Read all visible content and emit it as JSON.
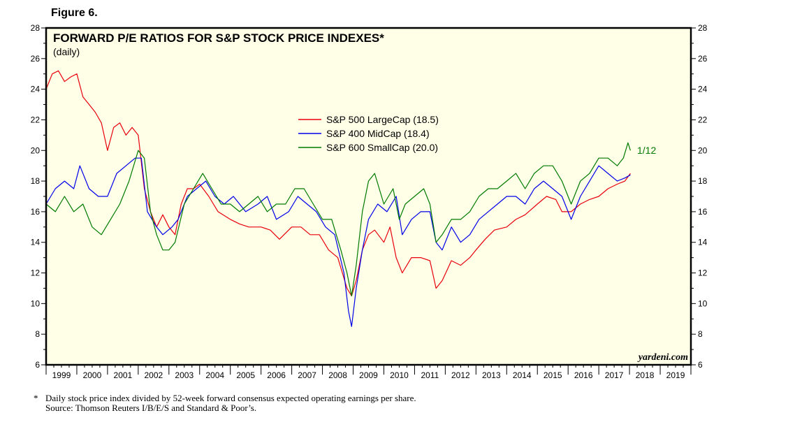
{
  "figure_label": "Figure 6.",
  "footnote": {
    "marker": "*",
    "line1": "Daily stock price index divided by 52-week forward consensus expected operating earnings per share.",
    "line2": "Source: Thomson Reuters I/B/E/S and Standard & Poor’s."
  },
  "chart_data": {
    "type": "line",
    "title": "FORWARD P/E RATIOS FOR S&P STOCK PRICE INDEXES*",
    "subtitle": "(daily)",
    "ylim": [
      6,
      28
    ],
    "y_ticks": [
      6,
      8,
      10,
      12,
      14,
      16,
      18,
      20,
      22,
      24,
      26,
      28
    ],
    "y_tick_labels": [
      "6",
      "8",
      "10",
      "12",
      "14",
      "16",
      "18",
      "20",
      "22",
      "24",
      "26",
      "28"
    ],
    "xlim": [
      1999,
      2020
    ],
    "x_tick_labels": [
      "1999",
      "2000",
      "2001",
      "2002",
      "2003",
      "2004",
      "2005",
      "2006",
      "2007",
      "2008",
      "2009",
      "2010",
      "2011",
      "2012",
      "2013",
      "2014",
      "2015",
      "2016",
      "2017",
      "2018",
      "2019"
    ],
    "grid": false,
    "legend_position": "upper-center",
    "annotation": "1/12",
    "watermark": "yardeni.com",
    "plot_background": "#FFFFE8",
    "series": [
      {
        "name": "S&P 500 LargeCap (18.5)",
        "color": "#E8000B",
        "x": [
          1999.0,
          1999.2,
          1999.4,
          1999.6,
          1999.8,
          2000.0,
          2000.2,
          2000.4,
          2000.6,
          2000.8,
          2001.0,
          2001.2,
          2001.4,
          2001.6,
          2001.8,
          2002.0,
          2002.2,
          2002.4,
          2002.6,
          2002.8,
          2003.0,
          2003.2,
          2003.4,
          2003.6,
          2003.8,
          2004.0,
          2004.3,
          2004.6,
          2005.0,
          2005.3,
          2005.6,
          2006.0,
          2006.3,
          2006.6,
          2007.0,
          2007.3,
          2007.6,
          2007.9,
          2008.2,
          2008.5,
          2008.8,
          2008.95,
          2009.1,
          2009.3,
          2009.5,
          2009.7,
          2010.0,
          2010.2,
          2010.4,
          2010.6,
          2010.9,
          2011.2,
          2011.5,
          2011.7,
          2011.9,
          2012.2,
          2012.5,
          2012.8,
          2013.0,
          2013.3,
          2013.6,
          2014.0,
          2014.3,
          2014.6,
          2015.0,
          2015.3,
          2015.6,
          2015.8,
          2016.1,
          2016.4,
          2016.7,
          2017.0,
          2017.3,
          2017.6,
          2017.85,
          2018.03
        ],
        "y": [
          24.0,
          25.0,
          25.2,
          24.5,
          24.8,
          25.0,
          23.5,
          23.0,
          22.5,
          21.8,
          20.0,
          21.5,
          21.8,
          21.0,
          21.5,
          21.0,
          17.5,
          16.0,
          15.0,
          15.8,
          15.0,
          14.5,
          16.5,
          17.5,
          17.5,
          17.8,
          17.0,
          16.0,
          15.5,
          15.2,
          15.0,
          15.0,
          14.8,
          14.2,
          15.0,
          15.0,
          14.5,
          14.5,
          13.5,
          13.0,
          11.0,
          10.5,
          11.5,
          13.5,
          14.5,
          14.8,
          14.0,
          15.0,
          13.0,
          12.0,
          13.0,
          13.0,
          12.8,
          11.0,
          11.5,
          12.8,
          12.5,
          13.0,
          13.5,
          14.2,
          14.8,
          15.0,
          15.5,
          15.8,
          16.5,
          17.0,
          16.8,
          16.0,
          16.0,
          16.5,
          16.8,
          17.0,
          17.5,
          17.8,
          18.0,
          18.5
        ]
      },
      {
        "name": "S&P 400 MidCap (18.4)",
        "color": "#0000E8",
        "x": [
          1999.0,
          1999.3,
          1999.6,
          1999.9,
          2000.1,
          2000.4,
          2000.7,
          2001.0,
          2001.3,
          2001.6,
          2001.9,
          2002.1,
          2002.3,
          2002.6,
          2002.8,
          2003.1,
          2003.3,
          2003.6,
          2003.9,
          2004.2,
          2004.5,
          2004.8,
          2005.1,
          2005.5,
          2005.9,
          2006.2,
          2006.5,
          2006.9,
          2007.2,
          2007.5,
          2007.8,
          2008.1,
          2008.4,
          2008.7,
          2008.85,
          2008.95,
          2009.1,
          2009.3,
          2009.5,
          2009.8,
          2010.1,
          2010.4,
          2010.6,
          2010.9,
          2011.2,
          2011.5,
          2011.7,
          2011.9,
          2012.2,
          2012.5,
          2012.8,
          2013.1,
          2013.4,
          2013.7,
          2014.0,
          2014.3,
          2014.6,
          2014.9,
          2015.2,
          2015.5,
          2015.8,
          2016.1,
          2016.4,
          2016.7,
          2017.0,
          2017.3,
          2017.6,
          2017.85,
          2018.03
        ],
        "y": [
          16.5,
          17.5,
          18.0,
          17.5,
          19.0,
          17.5,
          17.0,
          17.0,
          18.5,
          19.0,
          19.5,
          19.5,
          16.0,
          15.0,
          14.5,
          15.0,
          15.5,
          17.0,
          17.5,
          18.0,
          17.0,
          16.5,
          17.0,
          16.0,
          16.5,
          17.0,
          15.5,
          16.0,
          17.0,
          16.5,
          16.0,
          15.0,
          14.5,
          12.0,
          9.5,
          8.5,
          11.0,
          13.5,
          15.5,
          16.5,
          16.0,
          17.0,
          14.5,
          15.5,
          16.0,
          16.0,
          14.0,
          13.5,
          15.0,
          14.0,
          14.5,
          15.5,
          16.0,
          16.5,
          17.0,
          17.0,
          16.5,
          17.5,
          18.0,
          17.5,
          17.0,
          15.5,
          17.0,
          18.0,
          19.0,
          18.5,
          18.0,
          18.2,
          18.4
        ]
      },
      {
        "name": "S&P 600 SmallCap (20.0)",
        "color": "#007A00",
        "x": [
          1999.0,
          1999.3,
          1999.6,
          1999.9,
          2000.2,
          2000.5,
          2000.8,
          2001.1,
          2001.4,
          2001.7,
          2002.0,
          2002.2,
          2002.4,
          2002.6,
          2002.8,
          2003.0,
          2003.2,
          2003.5,
          2003.8,
          2004.1,
          2004.4,
          2004.7,
          2005.0,
          2005.3,
          2005.6,
          2005.9,
          2006.2,
          2006.5,
          2006.8,
          2007.1,
          2007.4,
          2007.7,
          2008.0,
          2008.3,
          2008.6,
          2008.8,
          2008.95,
          2009.1,
          2009.3,
          2009.5,
          2009.7,
          2010.0,
          2010.3,
          2010.5,
          2010.7,
          2011.0,
          2011.3,
          2011.5,
          2011.7,
          2011.9,
          2012.2,
          2012.5,
          2012.8,
          2013.1,
          2013.4,
          2013.7,
          2014.0,
          2014.3,
          2014.6,
          2014.9,
          2015.2,
          2015.5,
          2015.8,
          2016.1,
          2016.4,
          2016.7,
          2017.0,
          2017.3,
          2017.6,
          2017.8,
          2017.95,
          2018.03
        ],
        "y": [
          16.5,
          16.0,
          17.0,
          16.0,
          16.5,
          15.0,
          14.5,
          15.5,
          16.5,
          18.0,
          20.0,
          19.5,
          16.0,
          14.5,
          13.5,
          13.5,
          14.0,
          16.5,
          17.5,
          18.5,
          17.5,
          16.5,
          16.5,
          16.0,
          16.5,
          17.0,
          16.0,
          16.5,
          16.5,
          17.5,
          17.5,
          16.5,
          15.5,
          15.5,
          13.5,
          12.0,
          10.5,
          12.5,
          16.0,
          18.0,
          18.5,
          16.5,
          17.5,
          15.5,
          16.5,
          17.0,
          17.5,
          16.5,
          14.0,
          14.5,
          15.5,
          15.5,
          16.0,
          17.0,
          17.5,
          17.5,
          18.0,
          18.5,
          17.5,
          18.5,
          19.0,
          19.0,
          18.0,
          16.5,
          18.0,
          18.5,
          19.5,
          19.5,
          19.0,
          19.5,
          20.5,
          20.0
        ]
      }
    ]
  }
}
